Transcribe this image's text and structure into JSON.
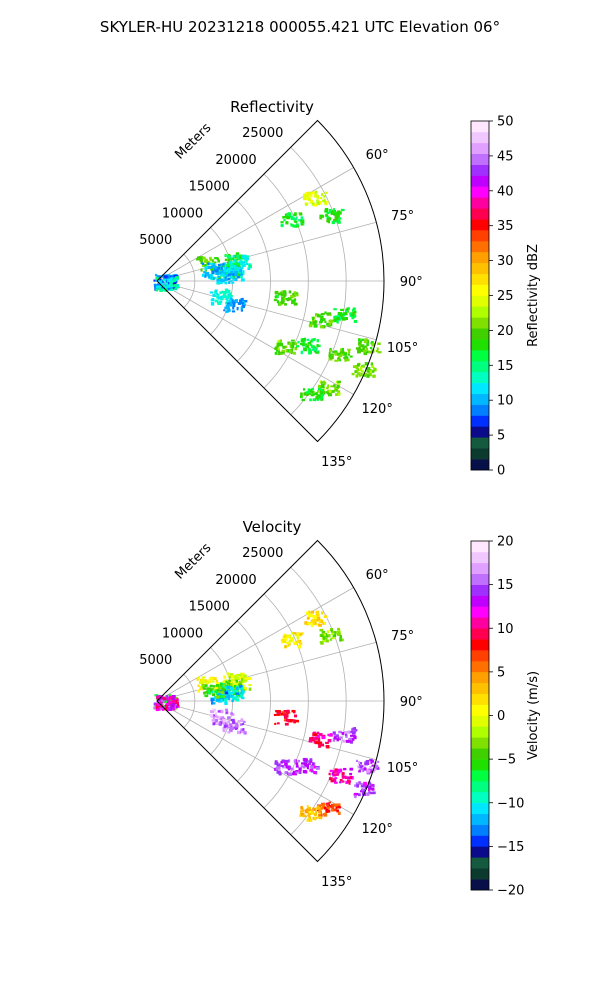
{
  "figure_title": "SKYLER-HU  20231218  000055.421 UTC Elevation 06°",
  "chart_data": [
    {
      "type": "polar-sector",
      "title": "Reflectivity",
      "radial_label": "Meters",
      "radial_ticks": [
        "5000",
        "10000",
        "15000",
        "20000",
        "25000"
      ],
      "radial_tick_values": [
        5000,
        10000,
        15000,
        20000,
        25000
      ],
      "rmax": 30000,
      "angle_ticks": [
        "60°",
        "75°",
        "90°",
        "105°",
        "120°",
        "135°"
      ],
      "angle_tick_values": [
        60,
        75,
        90,
        105,
        120,
        135
      ],
      "theta_range": [
        45,
        135
      ],
      "grid": true,
      "colorbar": {
        "label": "Reflectivity dBZ",
        "min": 0,
        "max": 50,
        "ticks": [
          "0",
          "5",
          "10",
          "15",
          "20",
          "25",
          "30",
          "35",
          "40",
          "45",
          "50"
        ],
        "tick_values": [
          0,
          5,
          10,
          15,
          20,
          25,
          30,
          35,
          40,
          45,
          50
        ],
        "colors": [
          "#08104a",
          "#0d3a2e",
          "#145a3e",
          "#0a0a8a",
          "#0030ff",
          "#0080ff",
          "#00b8ff",
          "#00e8ff",
          "#00ffc0",
          "#00ff80",
          "#00ff40",
          "#20e000",
          "#40d000",
          "#80e000",
          "#b0ff00",
          "#e0ff00",
          "#ffff00",
          "#ffe000",
          "#ffc000",
          "#ffa000",
          "#ff7000",
          "#ff4000",
          "#ff0000",
          "#ff0050",
          "#ff00a0",
          "#ff00ff",
          "#c000ff",
          "#a030ff",
          "#c070ff",
          "#e0a0ff",
          "#f0c8ff",
          "#ffe8ff"
        ]
      },
      "clusters": [
        {
          "az": 74,
          "r": 10500,
          "value": 18
        },
        {
          "az": 76,
          "r": 11000,
          "value": 13
        },
        {
          "az": 79,
          "r": 10000,
          "value": 12
        },
        {
          "az": 81,
          "r": 9500,
          "value": 17
        },
        {
          "az": 83,
          "r": 9800,
          "value": 11
        },
        {
          "az": 85,
          "r": 8500,
          "value": 11
        },
        {
          "az": 70,
          "r": 7000,
          "value": 19
        },
        {
          "az": 78,
          "r": 7500,
          "value": 10
        },
        {
          "az": 65,
          "r": 19500,
          "value": 17
        },
        {
          "az": 69,
          "r": 24500,
          "value": 18
        },
        {
          "az": 62,
          "r": 23500,
          "value": 24
        },
        {
          "az": 88,
          "r": 1000,
          "value": 9
        },
        {
          "az": 92,
          "r": 800,
          "value": 8
        },
        {
          "az": 97,
          "r": 1200,
          "value": 13
        },
        {
          "az": 103,
          "r": 8500,
          "value": 13
        },
        {
          "az": 107,
          "r": 10500,
          "value": 10
        },
        {
          "az": 97,
          "r": 17000,
          "value": 19
        },
        {
          "az": 103,
          "r": 22000,
          "value": 19
        },
        {
          "az": 100,
          "r": 25000,
          "value": 17
        },
        {
          "az": 107,
          "r": 29000,
          "value": 20
        },
        {
          "az": 113,
          "r": 21500,
          "value": 17
        },
        {
          "az": 112,
          "r": 26000,
          "value": 20
        },
        {
          "az": 113,
          "r": 29500,
          "value": 21
        },
        {
          "az": 122,
          "r": 26500,
          "value": 21
        },
        {
          "az": 126,
          "r": 25000,
          "value": 18
        },
        {
          "az": 117,
          "r": 19000,
          "value": 20
        }
      ]
    },
    {
      "type": "polar-sector",
      "title": "Velocity",
      "radial_label": "Meters",
      "radial_ticks": [
        "5000",
        "10000",
        "15000",
        "20000",
        "25000"
      ],
      "radial_tick_values": [
        5000,
        10000,
        15000,
        20000,
        25000
      ],
      "rmax": 30000,
      "angle_ticks": [
        "60°",
        "75°",
        "90°",
        "105°",
        "120°",
        "135°"
      ],
      "angle_tick_values": [
        60,
        75,
        90,
        105,
        120,
        135
      ],
      "theta_range": [
        45,
        135
      ],
      "grid": true,
      "colorbar": {
        "label": "Velocity (m/s)",
        "min": -20,
        "max": 20,
        "ticks": [
          "−20",
          "−15",
          "−10",
          "−5",
          "0",
          "5",
          "10",
          "15",
          "20"
        ],
        "tick_values": [
          -20,
          -15,
          -10,
          -5,
          0,
          5,
          10,
          15,
          20
        ],
        "colors": [
          "#08104a",
          "#0d3a2e",
          "#145a3e",
          "#0a0a8a",
          "#0030ff",
          "#0080ff",
          "#00b8ff",
          "#00e8ff",
          "#00ffc0",
          "#00ff80",
          "#00ff40",
          "#20e000",
          "#40d000",
          "#80e000",
          "#b0ff00",
          "#e0ff00",
          "#ffff00",
          "#ffe000",
          "#ffc000",
          "#ffa000",
          "#ff7000",
          "#ff4000",
          "#ff0000",
          "#ff0050",
          "#ff00a0",
          "#ff00ff",
          "#c000ff",
          "#a030ff",
          "#c070ff",
          "#e0a0ff",
          "#f0c8ff",
          "#ffe8ff"
        ]
      },
      "clusters": [
        {
          "az": 74,
          "r": 10500,
          "value": 0
        },
        {
          "az": 76,
          "r": 11000,
          "value": -1
        },
        {
          "az": 79,
          "r": 10000,
          "value": -4
        },
        {
          "az": 81,
          "r": 9500,
          "value": -8
        },
        {
          "az": 83,
          "r": 9800,
          "value": -11
        },
        {
          "az": 85,
          "r": 8500,
          "value": -12
        },
        {
          "az": 70,
          "r": 7000,
          "value": 1
        },
        {
          "az": 78,
          "r": 7500,
          "value": -5
        },
        {
          "az": 65,
          "r": 19500,
          "value": 1
        },
        {
          "az": 69,
          "r": 24500,
          "value": -3
        },
        {
          "az": 62,
          "r": 23500,
          "value": 2
        },
        {
          "az": 88,
          "r": 1000,
          "value": -5
        },
        {
          "az": 92,
          "r": 800,
          "value": 14
        },
        {
          "az": 97,
          "r": 1200,
          "value": 11
        },
        {
          "az": 103,
          "r": 8500,
          "value": 16
        },
        {
          "az": 107,
          "r": 10500,
          "value": 16
        },
        {
          "az": 97,
          "r": 17000,
          "value": 8
        },
        {
          "az": 103,
          "r": 22000,
          "value": 10
        },
        {
          "az": 100,
          "r": 25000,
          "value": 15
        },
        {
          "az": 107,
          "r": 29000,
          "value": 15
        },
        {
          "az": 113,
          "r": 21500,
          "value": 14
        },
        {
          "az": 112,
          "r": 26000,
          "value": 11
        },
        {
          "az": 113,
          "r": 29500,
          "value": 14
        },
        {
          "az": 122,
          "r": 26500,
          "value": 7
        },
        {
          "az": 126,
          "r": 25000,
          "value": 3
        },
        {
          "az": 117,
          "r": 19000,
          "value": 14
        }
      ]
    }
  ]
}
